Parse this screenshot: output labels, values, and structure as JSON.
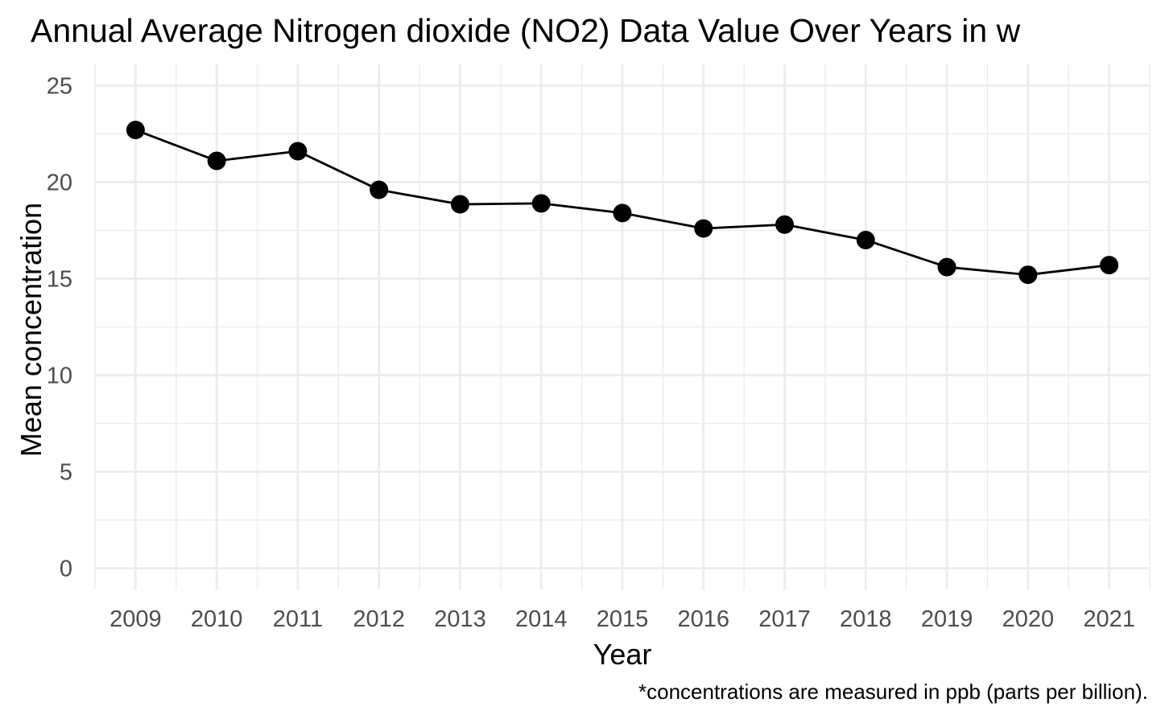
{
  "chart_data": {
    "type": "line",
    "title": "Annual Average Nitrogen dioxide (NO2) Data Value Over Years in w",
    "xlabel": "Year",
    "ylabel": "Mean concentration",
    "caption": "*concentrations are measured in ppb (parts per billion).",
    "x": [
      2009,
      2010,
      2011,
      2012,
      2013,
      2014,
      2015,
      2016,
      2017,
      2018,
      2019,
      2020,
      2021
    ],
    "x_tick_labels": [
      "2009",
      "2010",
      "2011",
      "2012",
      "2013",
      "2014",
      "2015",
      "2016",
      "2017",
      "2018",
      "2019",
      "2020",
      "2021"
    ],
    "y_ticks": [
      0,
      5,
      10,
      15,
      20,
      25
    ],
    "y_tick_labels": [
      "0",
      "5",
      "10",
      "15",
      "20",
      "25"
    ],
    "xlim": [
      2008.5,
      2021.5
    ],
    "ylim": [
      -1.1,
      26.1
    ],
    "grid": true,
    "legend": "none",
    "series": [
      {
        "values": [
          22.7,
          21.1,
          21.6,
          19.6,
          18.85,
          18.9,
          18.4,
          17.6,
          17.8,
          17.0,
          15.6,
          15.2,
          15.7
        ],
        "color": "#000000",
        "marker": "filled-circle"
      }
    ]
  }
}
